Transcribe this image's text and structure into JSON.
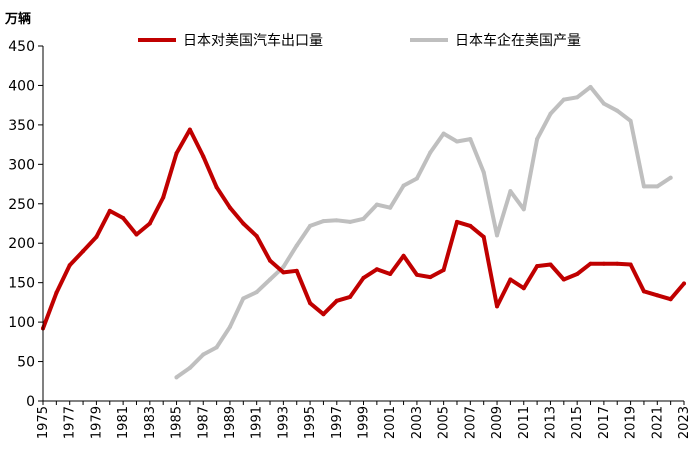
{
  "chart_data": {
    "type": "line",
    "ylabel": "万辆",
    "ylim": [
      0,
      450
    ],
    "yticks": [
      0,
      50,
      100,
      150,
      200,
      250,
      300,
      350,
      400,
      450
    ],
    "xlim": [
      1975,
      2023
    ],
    "xticks": [
      1975,
      1977,
      1979,
      1981,
      1983,
      1985,
      1987,
      1989,
      1991,
      1993,
      1995,
      1997,
      1999,
      2001,
      2003,
      2005,
      2007,
      2009,
      2011,
      2013,
      2015,
      2017,
      2019,
      2021,
      2023
    ],
    "series": [
      {
        "name": "日本对美国汽车出口量",
        "color": "#c00000",
        "x": [
          1975,
          1976,
          1977,
          1978,
          1979,
          1980,
          1981,
          1982,
          1983,
          1984,
          1985,
          1986,
          1987,
          1988,
          1989,
          1990,
          1991,
          1992,
          1993,
          1994,
          1995,
          1996,
          1997,
          1998,
          1999,
          2000,
          2001,
          2002,
          2003,
          2004,
          2005,
          2006,
          2007,
          2008,
          2009,
          2010,
          2011,
          2012,
          2013,
          2014,
          2015,
          2016,
          2017,
          2018,
          2019,
          2020,
          2021,
          2022,
          2023
        ],
        "values": [
          92,
          137,
          172,
          190,
          208,
          241,
          232,
          211,
          225,
          258,
          314,
          344,
          310,
          271,
          245,
          225,
          209,
          178,
          163,
          165,
          124,
          110,
          127,
          132,
          156,
          167,
          161,
          184,
          160,
          157,
          166,
          227,
          222,
          208,
          120,
          154,
          143,
          171,
          173,
          154,
          161,
          174,
          174,
          174,
          173,
          139,
          134,
          129,
          149
        ]
      },
      {
        "name": "日本车企在美国产量",
        "color": "#bfbfbf",
        "x": [
          1985,
          1986,
          1987,
          1988,
          1989,
          1990,
          1991,
          1992,
          1993,
          1994,
          1995,
          1996,
          1997,
          1998,
          1999,
          2000,
          2001,
          2002,
          2003,
          2004,
          2005,
          2006,
          2007,
          2008,
          2009,
          2010,
          2011,
          2012,
          2013,
          2014,
          2015,
          2016,
          2017,
          2018,
          2019,
          2020,
          2021,
          2022
        ],
        "values": [
          30,
          42,
          59,
          68,
          94,
          130,
          138,
          154,
          170,
          197,
          222,
          228,
          229,
          227,
          231,
          249,
          245,
          273,
          282,
          315,
          339,
          329,
          332,
          290,
          210,
          266,
          243,
          332,
          364,
          382,
          385,
          398,
          377,
          368,
          355,
          272,
          272,
          283
        ]
      }
    ]
  }
}
